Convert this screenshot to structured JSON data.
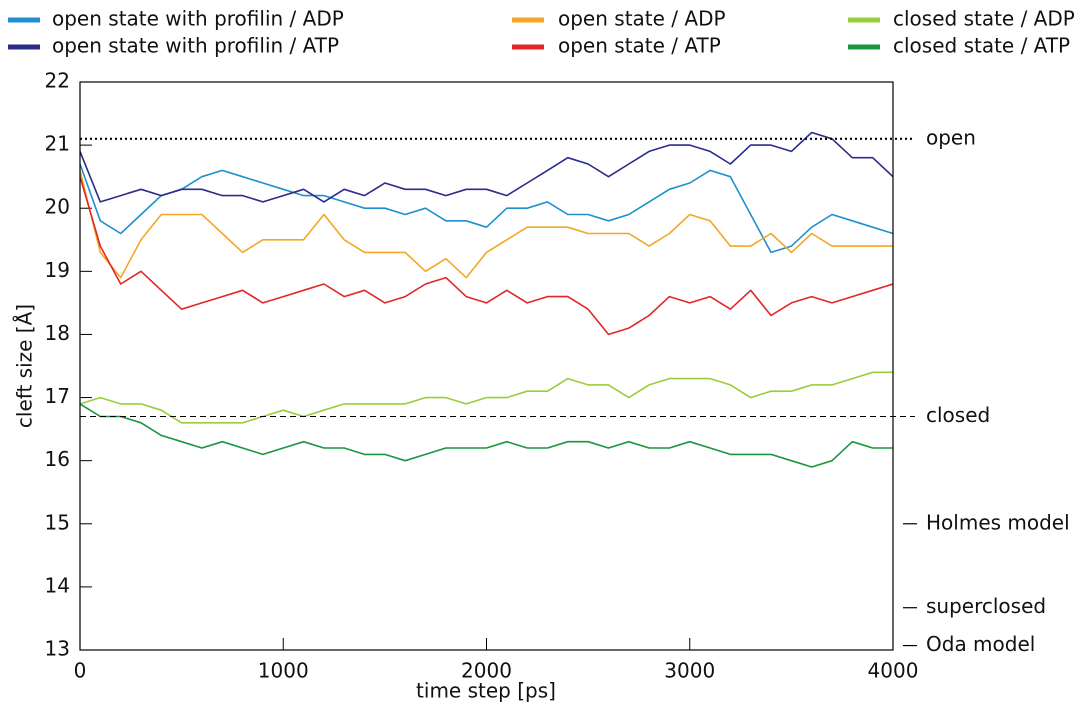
{
  "chart_data": {
    "type": "line",
    "x_label": "time step [ps]",
    "y_label": "cleft size [Å]",
    "x": [
      0,
      100,
      200,
      300,
      400,
      500,
      600,
      700,
      800,
      900,
      1000,
      1100,
      1200,
      1300,
      1400,
      1500,
      1600,
      1700,
      1800,
      1900,
      2000,
      2100,
      2200,
      2300,
      2400,
      2500,
      2600,
      2700,
      2800,
      2900,
      3000,
      3100,
      3200,
      3300,
      3400,
      3500,
      3600,
      3700,
      3800,
      3900,
      4000
    ],
    "series": [
      {
        "name": "open state with profilin / ADP",
        "color": "#1f8fd0",
        "values": [
          20.7,
          19.8,
          19.6,
          19.9,
          20.2,
          20.3,
          20.5,
          20.6,
          20.5,
          20.4,
          20.3,
          20.2,
          20.2,
          20.1,
          20.0,
          20.0,
          19.9,
          20.0,
          19.8,
          19.8,
          19.7,
          20.0,
          20.0,
          20.1,
          19.9,
          19.9,
          19.8,
          19.9,
          20.1,
          20.3,
          20.4,
          20.6,
          20.5,
          19.9,
          19.3,
          19.4,
          19.7,
          19.9,
          19.8,
          19.7,
          19.6
        ]
      },
      {
        "name": "open state with profilin / ATP",
        "color": "#2b2b8c",
        "values": [
          20.9,
          20.1,
          20.2,
          20.3,
          20.2,
          20.3,
          20.3,
          20.2,
          20.2,
          20.1,
          20.2,
          20.3,
          20.1,
          20.3,
          20.2,
          20.4,
          20.3,
          20.3,
          20.2,
          20.3,
          20.3,
          20.2,
          20.4,
          20.6,
          20.8,
          20.7,
          20.5,
          20.7,
          20.9,
          21.0,
          21.0,
          20.9,
          20.7,
          21.0,
          21.0,
          20.9,
          21.2,
          21.1,
          20.8,
          20.8,
          20.5
        ]
      },
      {
        "name": "open state / ADP",
        "color": "#f5a623",
        "values": [
          20.6,
          19.3,
          18.9,
          19.5,
          19.9,
          19.9,
          19.9,
          19.6,
          19.3,
          19.5,
          19.5,
          19.5,
          19.9,
          19.5,
          19.3,
          19.3,
          19.3,
          19.0,
          19.2,
          18.9,
          19.3,
          19.5,
          19.7,
          19.7,
          19.7,
          19.6,
          19.6,
          19.6,
          19.4,
          19.6,
          19.9,
          19.8,
          19.4,
          19.4,
          19.6,
          19.3,
          19.6,
          19.4,
          19.4,
          19.4,
          19.4
        ]
      },
      {
        "name": "open state / ATP",
        "color": "#e32626",
        "values": [
          20.5,
          19.4,
          18.8,
          19.0,
          18.7,
          18.4,
          18.5,
          18.6,
          18.7,
          18.5,
          18.6,
          18.7,
          18.8,
          18.6,
          18.7,
          18.5,
          18.6,
          18.8,
          18.9,
          18.6,
          18.5,
          18.7,
          18.5,
          18.6,
          18.6,
          18.4,
          18.0,
          18.1,
          18.3,
          18.6,
          18.5,
          18.6,
          18.4,
          18.7,
          18.3,
          18.5,
          18.6,
          18.5,
          18.6,
          18.7,
          18.8
        ]
      },
      {
        "name": "closed state / ADP",
        "color": "#9acd3a",
        "values": [
          16.9,
          17.0,
          16.9,
          16.9,
          16.8,
          16.6,
          16.6,
          16.6,
          16.6,
          16.7,
          16.8,
          16.7,
          16.8,
          16.9,
          16.9,
          16.9,
          16.9,
          17.0,
          17.0,
          16.9,
          17.0,
          17.0,
          17.1,
          17.1,
          17.3,
          17.2,
          17.2,
          17.0,
          17.2,
          17.3,
          17.3,
          17.3,
          17.2,
          17.0,
          17.1,
          17.1,
          17.2,
          17.2,
          17.3,
          17.4,
          17.4
        ]
      },
      {
        "name": "closed state / ATP",
        "color": "#1a9640",
        "values": [
          16.9,
          16.7,
          16.7,
          16.6,
          16.4,
          16.3,
          16.2,
          16.3,
          16.2,
          16.1,
          16.2,
          16.3,
          16.2,
          16.2,
          16.1,
          16.1,
          16.0,
          16.1,
          16.2,
          16.2,
          16.2,
          16.3,
          16.2,
          16.2,
          16.3,
          16.3,
          16.2,
          16.3,
          16.2,
          16.2,
          16.3,
          16.2,
          16.1,
          16.1,
          16.1,
          16.0,
          15.9,
          16.0,
          16.3,
          16.2,
          16.2
        ]
      }
    ],
    "xlim": [
      0,
      4000
    ],
    "xticks": [
      0,
      1000,
      2000,
      3000,
      4000
    ],
    "ylim": [
      13,
      22
    ],
    "yticks": [
      13,
      14,
      15,
      16,
      17,
      18,
      19,
      20,
      21,
      22
    ],
    "reference_lines": [
      {
        "value": 21.1,
        "label": "open",
        "style": "dotted"
      },
      {
        "value": 16.7,
        "label": "closed",
        "style": "dashed"
      },
      {
        "value": 15.0,
        "label": "Holmes model",
        "style": "tick"
      },
      {
        "value": 13.67,
        "label": "superclosed",
        "style": "tick"
      },
      {
        "value": 13.07,
        "label": "Oda model",
        "style": "tick"
      }
    ],
    "legend": "top"
  }
}
